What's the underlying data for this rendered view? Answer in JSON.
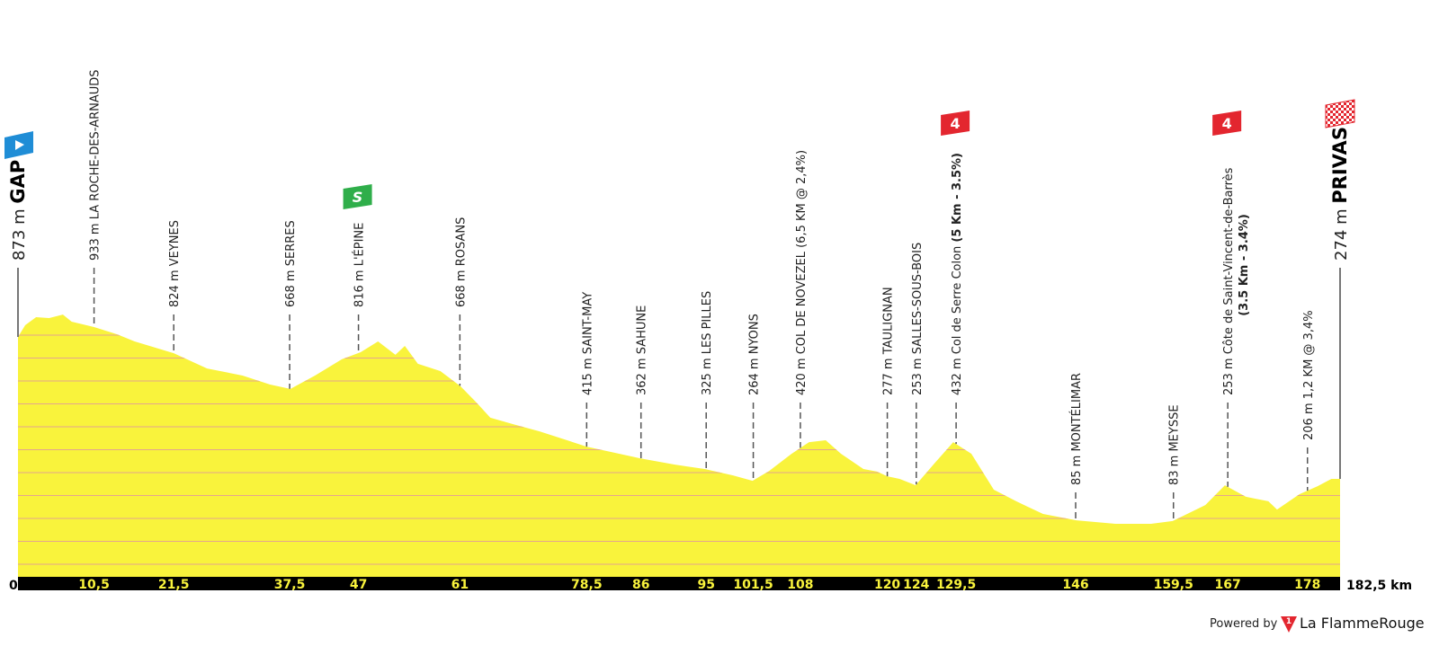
{
  "chart_data": {
    "type": "area",
    "color": "#f9f33c",
    "xlim": [
      0,
      182.5
    ],
    "ylim": [
      -145,
      1000
    ],
    "xticks": [
      0,
      {
        "value": 182.5,
        "label": "182,5 km"
      }
    ],
    "start": {
      "altitude": "873 m",
      "name": "GAP"
    },
    "finish": {
      "altitude": "274 m",
      "name": "PRIVAS"
    },
    "waypoints": [
      {
        "km": {
          "value": 10.5,
          "label": "10,5"
        },
        "label": "933 m LA ROCHE-DES-ARNAUDS"
      },
      {
        "km": {
          "value": 21.5,
          "label": "21,5"
        },
        "label": "824 m VEYNES"
      },
      {
        "km": {
          "value": 37.5,
          "label": "37,5"
        },
        "label": "668 m SERRES"
      },
      {
        "km": 47,
        "label": "816 m L'ÉPINE",
        "marker": {
          "kind": "sprint",
          "text": "S"
        }
      },
      {
        "km": 61,
        "label": "668 m ROSANS"
      },
      {
        "km": {
          "value": 78.5,
          "label": "78,5"
        },
        "label": "415 m SAINT-MAY"
      },
      {
        "km": 86,
        "label": "362 m SAHUNE"
      },
      {
        "km": 95,
        "label": "325 m LES PILLES"
      },
      {
        "km": {
          "value": 101.5,
          "label": "101,5"
        },
        "label": "264 m NYONS"
      },
      {
        "km": 108,
        "label": "420 m COL DE NOVEZEL (6,5 KM @ 2,4%)"
      },
      {
        "km": 120,
        "label": "277 m TAULIGNAN"
      },
      {
        "km": 124,
        "label": "253 m SALLES-SOUS-BOIS"
      },
      {
        "km": {
          "value": 129.5,
          "label": "129,5"
        },
        "label": "432 m Col de Serre Colon ",
        "detail": "(5 Km - 3.5%)",
        "marker": {
          "kind": "climb",
          "text": "4"
        }
      },
      {
        "km": 146,
        "label": "85 m MONTÉLIMAR"
      },
      {
        "km": {
          "value": 159.5,
          "label": "159,5"
        },
        "label": "83 m MEYSSE"
      },
      {
        "km": 167,
        "label": "253 m Côte de Saint-Vincent-de-Barrès",
        "detail2": "(3.5 Km - 3.4%)",
        "marker": {
          "kind": "climb",
          "text": "4"
        }
      },
      {
        "km": 178,
        "label": "206 m 1,2 KM @ 3,4%"
      }
    ],
    "profile": {
      "km": [
        0,
        1,
        2.5,
        4.3,
        6.2,
        7.4,
        10.5,
        13.7,
        16.1,
        21.5,
        26.1,
        31,
        34.8,
        37.6,
        41,
        44.7,
        47.3,
        49.7,
        52.1,
        53.4,
        55.2,
        58.3,
        61.1,
        63.3,
        65.2,
        68.3,
        72,
        78.5,
        85.8,
        90.6,
        94.8,
        98.7,
        101.4,
        103.7,
        106.8,
        109.2,
        111.5,
        113.6,
        116.7,
        118.6,
        120,
        121.7,
        123.9,
        126.6,
        129.1,
        131.6,
        134.7,
        137.8,
        141.5,
        146.1,
        151.5,
        156.4,
        159.4,
        163.9,
        166.6,
        169.5,
        172.6,
        173.8,
        176.9,
        179.4,
        181.3,
        182.5
      ],
      "elevation": [
        874,
        924,
        958,
        954,
        969,
        939,
        916,
        885,
        855,
        805,
        740,
        710,
        672,
        653,
        710,
        779,
        809,
        855,
        798,
        836,
        760,
        729,
        664,
        595,
        531,
        504,
        473,
        408,
        359,
        332,
        313,
        286,
        263,
        305,
        378,
        427,
        435,
        378,
        313,
        302,
        282,
        271,
        244,
        340,
        427,
        378,
        225,
        176,
        122,
        95,
        80,
        80,
        92,
        160,
        244,
        195,
        176,
        141,
        206,
        240,
        271,
        271
      ]
    }
  },
  "footer": {
    "powered": "Powered by",
    "logo_mark": "1",
    "brand": "La FlammeRouge"
  }
}
